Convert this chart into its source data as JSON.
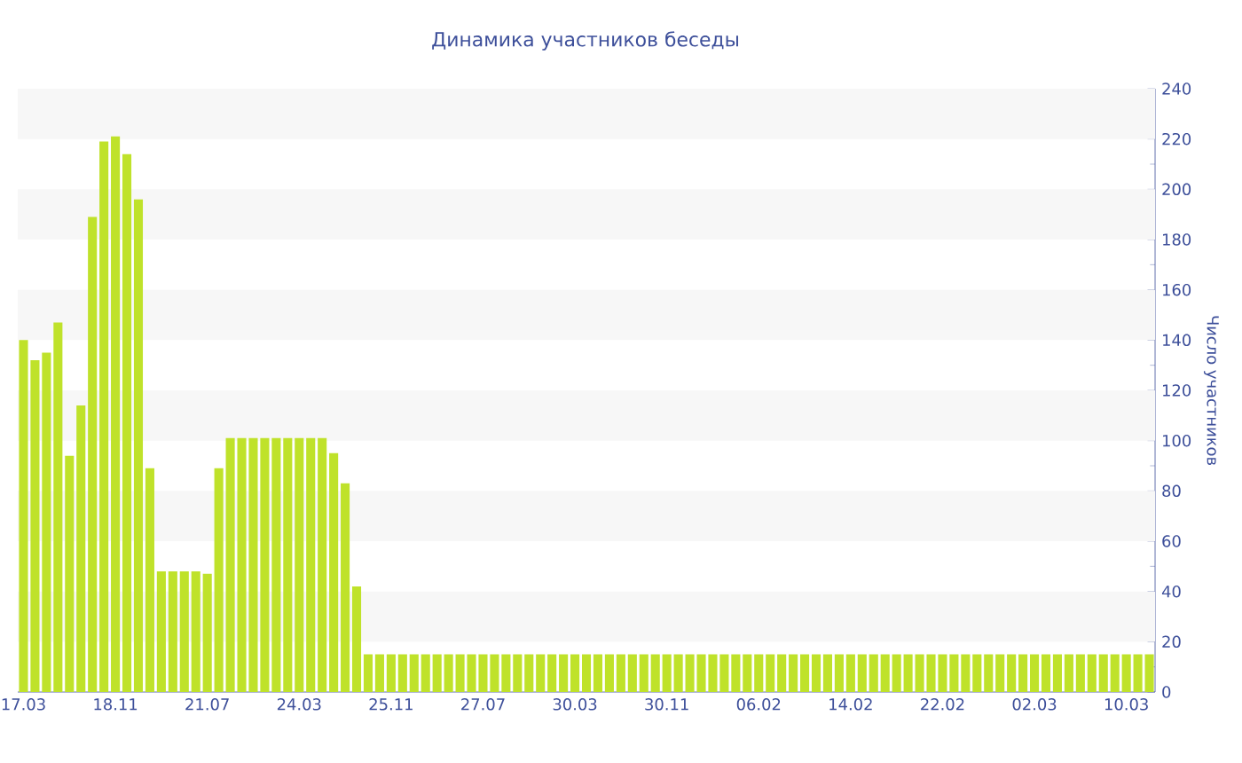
{
  "chart_data": {
    "type": "bar",
    "title": "Динамика участников беседы",
    "ylabel": "Число участников",
    "categories": [
      "17.03",
      null,
      null,
      null,
      null,
      null,
      null,
      null,
      "18.11",
      null,
      null,
      null,
      null,
      null,
      null,
      null,
      "21.07",
      null,
      null,
      null,
      null,
      null,
      null,
      null,
      "24.03",
      null,
      null,
      null,
      null,
      null,
      null,
      null,
      "25.11",
      null,
      null,
      null,
      null,
      null,
      null,
      null,
      "27.07",
      null,
      null,
      null,
      null,
      null,
      null,
      null,
      "30.03",
      null,
      null,
      null,
      null,
      null,
      null,
      null,
      "30.11",
      null,
      null,
      null,
      null,
      null,
      null,
      null,
      "06.02",
      null,
      null,
      null,
      null,
      null,
      null,
      null,
      "14.02",
      null,
      null,
      null,
      null,
      null,
      null,
      null,
      "22.02",
      null,
      null,
      null,
      null,
      null,
      null,
      null,
      "02.03",
      null,
      null,
      null,
      null,
      null,
      null,
      null,
      "10.03",
      null,
      null
    ],
    "values": [
      140,
      132,
      135,
      147,
      94,
      114,
      189,
      219,
      221,
      214,
      196,
      89,
      48,
      48,
      48,
      48,
      47,
      89,
      101,
      101,
      101,
      101,
      101,
      101,
      101,
      101,
      101,
      95,
      83,
      42,
      15,
      15,
      15,
      15,
      15,
      15,
      15,
      15,
      15,
      15,
      15,
      15,
      15,
      15,
      15,
      15,
      15,
      15,
      15,
      15,
      15,
      15,
      15,
      15,
      15,
      15,
      15,
      15,
      15,
      15,
      15,
      15,
      15,
      15,
      15,
      15,
      15,
      15,
      15,
      15,
      15,
      15,
      15,
      15,
      15,
      15,
      15,
      15,
      15,
      15,
      15,
      15,
      15,
      15,
      15,
      15,
      15,
      15,
      15,
      15,
      15,
      15,
      15,
      15,
      15,
      15,
      15,
      15,
      15
    ],
    "color": "#bfe22a",
    "ylim": [
      0,
      240
    ],
    "yticks": [
      0,
      20,
      40,
      60,
      80,
      100,
      120,
      140,
      160,
      180,
      200,
      220,
      240
    ],
    "bands": [
      {
        "axis": "y",
        "from": 20,
        "to": 40,
        "color": "#f7f7f7"
      },
      {
        "axis": "y",
        "from": 60,
        "to": 80,
        "color": "#f7f7f7"
      },
      {
        "axis": "y",
        "from": 100,
        "to": 120,
        "color": "#f7f7f7"
      },
      {
        "axis": "y",
        "from": 140,
        "to": 160,
        "color": "#f7f7f7"
      },
      {
        "axis": "y",
        "from": 180,
        "to": 200,
        "color": "#f7f7f7"
      },
      {
        "axis": "y",
        "from": 220,
        "to": 240,
        "color": "#f7f7f7"
      }
    ]
  }
}
